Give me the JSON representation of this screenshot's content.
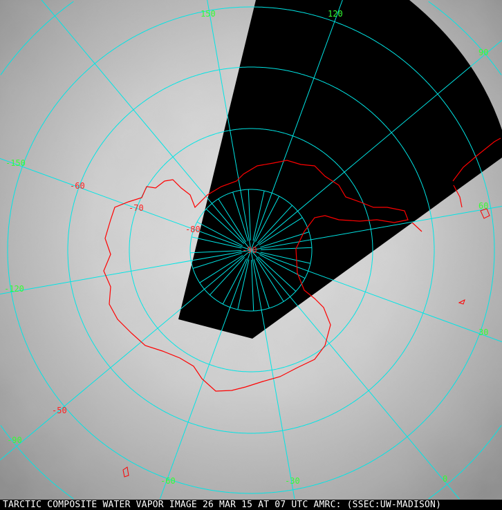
{
  "title": "TARCTIC COMPOSITE WATER VAPOR IMAGE 26 MAR 15 AT 07 UTC AMRC: (SSEC:UW-MADISON)",
  "colors": {
    "grid": "#00e5e5",
    "coast": "#ff0000",
    "lon_label": "#33ff33",
    "lat_label": "#ff2020",
    "no_data": "#000000"
  },
  "longitude_labels": [
    {
      "text": "150"
    },
    {
      "text": "120"
    },
    {
      "text": "90"
    },
    {
      "text": "-150"
    },
    {
      "text": "60"
    },
    {
      "text": "-120"
    },
    {
      "text": "30"
    },
    {
      "text": "-90"
    },
    {
      "text": "-60"
    },
    {
      "text": "-30"
    },
    {
      "text": "0"
    }
  ],
  "latitude_labels": [
    {
      "text": "-60"
    },
    {
      "text": "-70"
    },
    {
      "text": "-80"
    },
    {
      "text": "-90"
    },
    {
      "text": "-50"
    }
  ]
}
